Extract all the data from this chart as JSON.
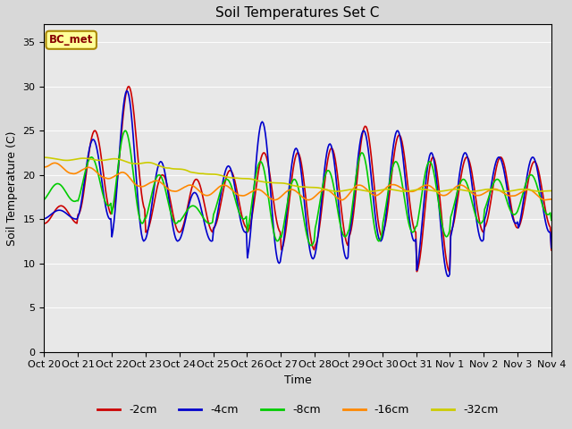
{
  "title": "Soil Temperatures Set C",
  "xlabel": "Time",
  "ylabel": "Soil Temperature (C)",
  "ylim": [
    0,
    37
  ],
  "yticks": [
    0,
    5,
    10,
    15,
    20,
    25,
    30,
    35
  ],
  "background_color": "#d8d8d8",
  "plot_bg_color": "#e8e8e8",
  "annotation_text": "BC_met",
  "annotation_bg": "#ffff99",
  "annotation_border": "#aa8800",
  "annotation_text_color": "#880000",
  "series_colors": [
    "#cc0000",
    "#0000cc",
    "#00cc00",
    "#ff8800",
    "#cccc00"
  ],
  "series_labels": [
    "-2cm",
    "-4cm",
    "-8cm",
    "-16cm",
    "-32cm"
  ],
  "x_tick_labels": [
    "Oct 20",
    "Oct 21",
    "Oct 22",
    "Oct 23",
    "Oct 24",
    "Oct 25",
    "Oct 26",
    "Oct 27",
    "Oct 28",
    "Oct 29",
    "Oct 30",
    "Oct 31",
    "Nov 1",
    "Nov 2",
    "Nov 3",
    "Nov 4"
  ],
  "n_points": 480,
  "line_width": 1.2
}
